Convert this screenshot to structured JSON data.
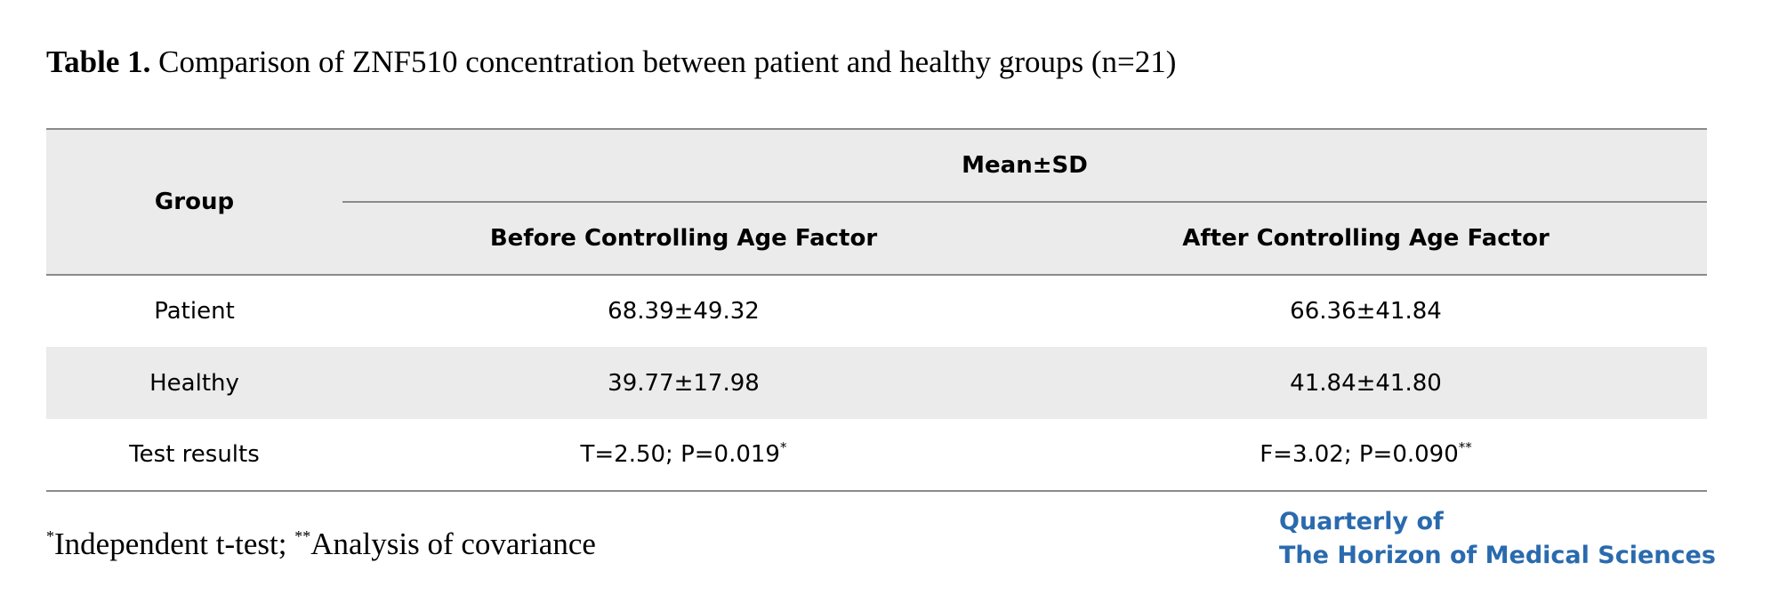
{
  "caption": {
    "label": "Table 1.",
    "text": "Comparison of ZNF510 concentration between patient and healthy groups (n=21)"
  },
  "table": {
    "group_header": "Group",
    "mean_header": "Mean±SD",
    "columns": [
      "Before Controlling Age Factor",
      "After Controlling Age Factor"
    ],
    "rows": [
      {
        "group": "Patient",
        "before": "68.39±49.32",
        "after": "66.36±41.84"
      },
      {
        "group": "Healthy",
        "before": "39.77±17.98",
        "after": "41.84±41.80"
      },
      {
        "group": "Test results",
        "before": "T=2.50; P=0.019",
        "before_mark": "*",
        "after": "F=3.02; P=0.090",
        "after_mark": "**"
      }
    ]
  },
  "footnote": {
    "mark1": "*",
    "text1": "Independent t-test; ",
    "mark2": "**",
    "text2": "Analysis of covariance"
  },
  "logo": {
    "line1": "Quarterly of",
    "line2": "The Horizon of Medical Sciences"
  },
  "colors": {
    "header_bg": "#ebebeb",
    "rule": "#8a8a8a",
    "logo": "#2a6aae"
  }
}
